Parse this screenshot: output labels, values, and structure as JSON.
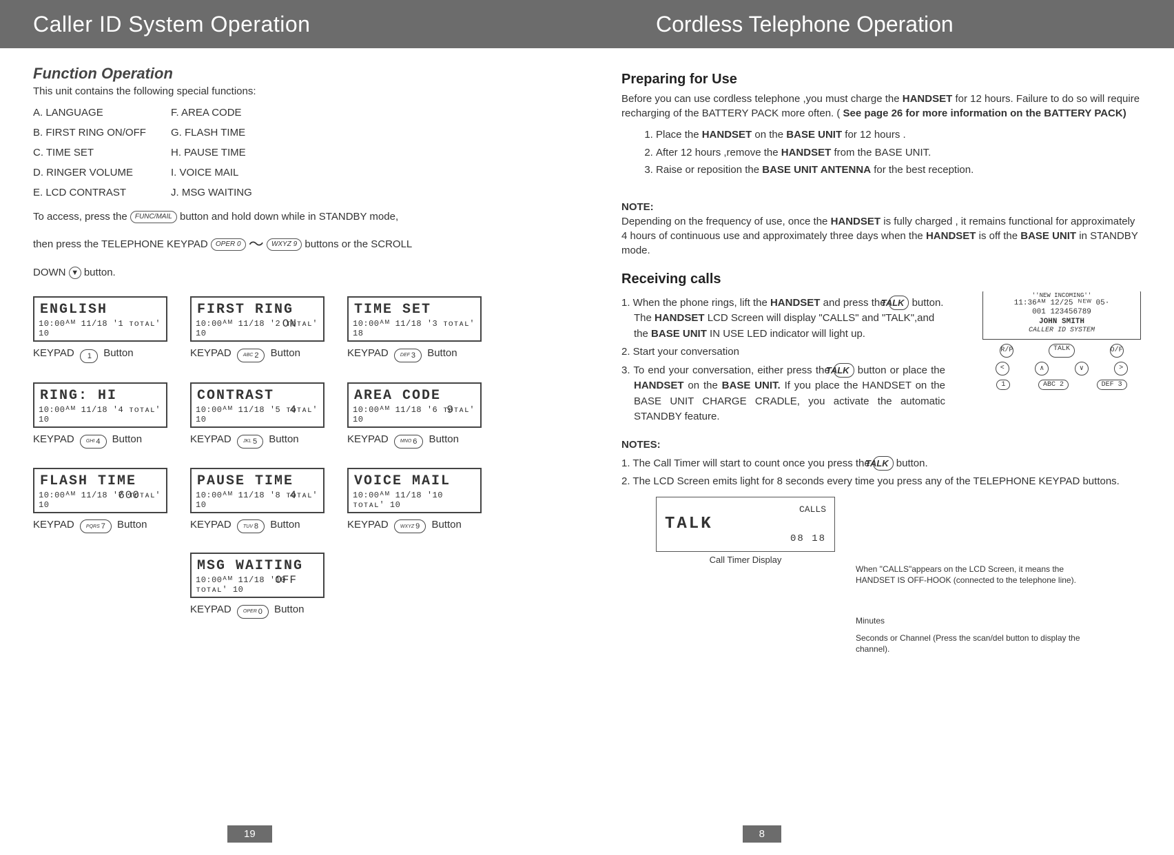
{
  "header": {
    "left": "Caller ID System Operation",
    "right": "Cordless Telephone Operation"
  },
  "left": {
    "title": "Function Operation",
    "intro": "This unit contains the following special functions:",
    "funcs": {
      "a": "A. LANGUAGE",
      "f": "F. AREA CODE",
      "b": "B. FIRST RING ON/OFF",
      "g": "G. FLASH TIME",
      "c": "C. TIME SET",
      "h": "H. PAUSE TIME",
      "d": "D. RINGER VOLUME",
      "i": "I. VOICE MAIL",
      "e": "E. LCD CONTRAST",
      "j": "J. MSG WAITING"
    },
    "access1a": "To access, press the ",
    "access1_btn": "FUNC/MAIL",
    "access1b": " button and hold down while in STANDBY mode,",
    "access2a": "then press the  TELEPHONE KEYPAD ",
    "access2_k0": "OPER 0",
    "access2_k9": "WXYZ 9",
    "access2b": "  buttons or the SCROLL",
    "access3a": "DOWN ",
    "access3_btn": "▼",
    "access3b": " button.",
    "lcd": [
      {
        "l1": "ENGLISH",
        "l1b": "",
        "l2": "10:00ᴬᴹ 11/18   '1 ᴛᴏᴛᴀʟ' 10",
        "keysub": "",
        "keynum": "1"
      },
      {
        "l1": "FIRST RING",
        "l1b": "ON",
        "l2": "10:00ᴬᴹ 11/18   '2 ᴛᴏᴛᴀʟ' 10",
        "keysub": "ABC",
        "keynum": "2"
      },
      {
        "l1": "TIME SET",
        "l1b": "",
        "l2": "10:00ᴬᴹ 11/18   '3 ᴛᴏᴛᴀʟ' 18",
        "keysub": "DEF",
        "keynum": "3"
      },
      {
        "l1": "RING: HI",
        "l1b": "",
        "l2": "10:00ᴬᴹ 11/18   '4 ᴛᴏᴛᴀʟ' 10",
        "keysub": "GHI",
        "keynum": "4"
      },
      {
        "l1": "CONTRAST",
        "l1b": "4",
        "l2": "10:00ᴬᴹ 11/18   '5 ᴛᴏᴛᴀʟ' 10",
        "keysub": "JKL",
        "keynum": "5"
      },
      {
        "l1": "AREA CODE",
        "l1b": "9",
        "l2": "10:00ᴬᴹ 11/18   '6 ᴛᴏᴛᴀʟ' 10",
        "keysub": "MNO",
        "keynum": "6"
      },
      {
        "l1": "FLASH TIME",
        "l1b": "600",
        "l2": "10:00ᴬᴹ 11/18   '7 ᴛᴏᴛᴀʟ' 10",
        "keysub": "PQRS",
        "keynum": "7"
      },
      {
        "l1": "PAUSE TIME",
        "l1b": "4",
        "l2": "10:00ᴬᴹ 11/18   '8 ᴛᴏᴛᴀʟ' 10",
        "keysub": "TUV",
        "keynum": "8"
      },
      {
        "l1": "VOICE MAIL",
        "l1b": "",
        "l2": "10:00ᴬᴹ 11/18   '10 ᴛᴏᴛᴀʟ' 10",
        "keysub": "WXYZ",
        "keynum": "9"
      },
      {
        "l1": "",
        "l1b": "",
        "l2": "",
        "keysub": "",
        "keynum": ""
      },
      {
        "l1": "MSG WAITING",
        "l1b": "OFF",
        "l2": "10:00ᴬᴹ 11/18   '10 ᴛᴏᴛᴀʟ' 10",
        "keysub": "OPER",
        "keynum": "0"
      }
    ],
    "kp_pre": "KEYPAD",
    "kp_post": "Button",
    "page": "19"
  },
  "right": {
    "prep_title": "Preparing for Use",
    "prep_p1a": "Before you can use cordless telephone ,you must charge the ",
    "prep_hs": "HANDSET",
    "prep_p1b": " for 12  hours. Failure to do so will require recharging of the BATTERY PACK more often. (",
    "prep_bold": "See page 26 for more information on the BATTERY PACK)",
    "steps": {
      "s1a": "Place the ",
      "s1b": "HANDSET",
      "s1c": " on the ",
      "s1d": "BASE UNIT",
      "s1e": " for 12 hours  .",
      "s2a": "After 12 hours ,remove the ",
      "s2b": "HANDSET",
      "s2c": " from the BASE UNIT.",
      "s3a": "Raise or reposition the ",
      "s3b": "BASE UNIT ANTENNA",
      "s3c": " for the best reception."
    },
    "note_label": "NOTE:",
    "note_p1a": "Depending on the frequency of use, once the ",
    "note_hs": "HANDSET",
    "note_p1b": " is fully charged , it remains  functional for approximately 4 hours of continuous use and approximately three days when the ",
    "note_hs2": "HANDSET",
    "note_p1c": " is off the ",
    "note_bu": "BASE UNIT",
    "note_p1d": " in STANDBY mode.",
    "recv_title": "Receiving calls",
    "recv1a": "1.  When the phone rings, lift the ",
    "recv1b": "HANDSET",
    "recv1c": " and press the ",
    "recv_talk": "TALK",
    "recv1d": " button. The ",
    "recv1e": "HANDSET",
    "recv1f": " LCD Screen will display \"CALLS\" and  \"TALK\",and the ",
    "recv1g": "BASE UNIT",
    "recv1h": " IN USE LED indicator will light up.",
    "recv2": "2. Start your conversation",
    "recv3a": "3. To end your conversation, either press the ",
    "recv3b": " button or place the ",
    "recv3c": "HANDSET",
    "recv3d": "  on  the ",
    "recv3e": "BASE UNIT.",
    "recv3f": "  If  you place the HANDSET on the BASE UNIT CHARGE CRADLE, you activate the automatic STANDBY feature.",
    "notes_label": "NOTES:",
    "notes1a": "1. The Call Timer will start to count once you press the  ",
    "notes1b": "  button.",
    "notes2": "2. The LCD Screen emits light for 8 seconds every time you press any of the TELEPHONE KEYPAD buttons.",
    "hd": {
      "t1": "''NEW INCOMING''",
      "t2": "11:36ᴬᴹ 12/25 ᴺᴱᵂ 05·",
      "t3": "001 123456789",
      "t4": "JOHN SMITH",
      "t5": "CALLER ID SYSTEM",
      "btns": {
        "rp": "R/P",
        "talk": "TALK",
        "oh": "O/F"
      },
      "row2": [
        "<",
        "∧",
        "∨",
        ">"
      ],
      "row3": [
        "1",
        "ABC 2",
        "DEF 3"
      ]
    },
    "ct": {
      "l1": "CALLS",
      "l2": "TALK",
      "l3": "08  18",
      "caption": "Call Timer Display"
    },
    "annot1": "When \"CALLS\"appears on the LCD Screen, it  means the HANDSET IS OFF-HOOK (connected to the telephone line).",
    "annot2": "Minutes",
    "annot3": "Seconds or Channel (Press the scan/del button to display the channel).",
    "page": "8"
  }
}
